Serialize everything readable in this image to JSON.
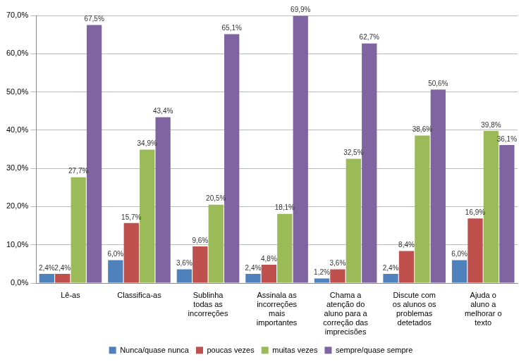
{
  "chart_data": {
    "type": "bar",
    "categories": [
      "Lê-as",
      "Classifica-as",
      "Sublinha todas as incorreções",
      "Assinala as incorreções mais importantes",
      "Chama a atenção do aluno para a correção das imprecisões",
      "Discute com os alunos os problemas detetados",
      "Ajuda o aluno a melhorar o texto"
    ],
    "series": [
      {
        "name": "Nunca/quase nunca",
        "color": "#4f81bd",
        "values": [
          2.4,
          6.0,
          3.6,
          2.4,
          1.2,
          2.4,
          6.0
        ],
        "value_labels": [
          "2,4%",
          "6,0%",
          "3,6%",
          "2,4%",
          "1,2%",
          "2,4%",
          "6,0%"
        ]
      },
      {
        "name": "poucas vezes",
        "color": "#c0504d",
        "values": [
          2.4,
          15.7,
          9.6,
          4.8,
          3.6,
          8.4,
          16.9
        ],
        "value_labels": [
          "2,4%",
          "15,7%",
          "9,6%",
          "4,8%",
          "3,6%",
          "8,4%",
          "16,9%"
        ]
      },
      {
        "name": "muitas vezes",
        "color": "#9bbb59",
        "values": [
          27.7,
          34.9,
          20.5,
          18.1,
          32.5,
          38.6,
          39.8
        ],
        "value_labels": [
          "27,7%",
          "34,9%",
          "20,5%",
          "18,1%",
          "32,5%",
          "38,6%",
          "39,8%"
        ]
      },
      {
        "name": "sempre/quase sempre",
        "color": "#8064a2",
        "values": [
          67.5,
          43.4,
          65.1,
          69.9,
          62.7,
          50.6,
          36.1
        ],
        "value_labels": [
          "67,5%",
          "43,4%",
          "65,1%",
          "69,9%",
          "62,7%",
          "50,6%",
          "36,1%"
        ]
      }
    ],
    "ylim": [
      0,
      70
    ],
    "yticks": [
      {
        "value": 0,
        "label": "0,0%"
      },
      {
        "value": 10,
        "label": "10,0%"
      },
      {
        "value": 20,
        "label": "20,0%"
      },
      {
        "value": 30,
        "label": "30,0%"
      },
      {
        "value": 40,
        "label": "40,0%"
      },
      {
        "value": 50,
        "label": "50,0%"
      },
      {
        "value": 60,
        "label": "60,0%"
      },
      {
        "value": 70,
        "label": "70,0%"
      }
    ],
    "grid": true,
    "legend": "bottom",
    "data_labels": true
  }
}
